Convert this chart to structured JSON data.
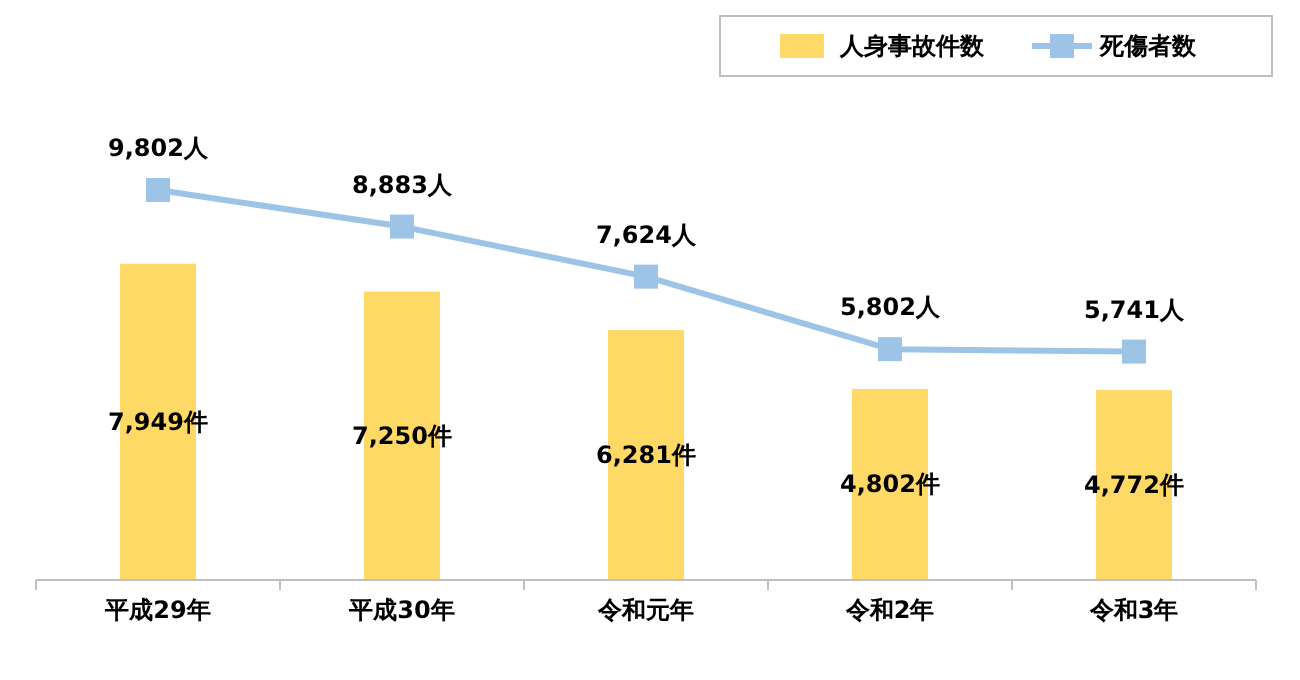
{
  "chart_data": {
    "type": "bar",
    "categories": [
      "平成29年",
      "平成30年",
      "令和元年",
      "令和2年",
      "令和3年"
    ],
    "series": [
      {
        "name": "人身事故件数",
        "color": "#ffd966",
        "values": [
          7949,
          7250,
          6281,
          4802,
          4772
        ],
        "value_labels": [
          "7,949件",
          "7,250件",
          "6,281件",
          "4,802件",
          "4,772件"
        ]
      },
      {
        "name": "死傷者数",
        "type": "line",
        "color": "#9dc3e6",
        "values": [
          9802,
          8883,
          7624,
          5802,
          5741
        ],
        "value_labels": [
          "9,802人",
          "8,883人",
          "7,624人",
          "5,802人",
          "5,741人"
        ],
        "marker": "square",
        "line_style": "solid"
      }
    ],
    "legend": "top right"
  }
}
